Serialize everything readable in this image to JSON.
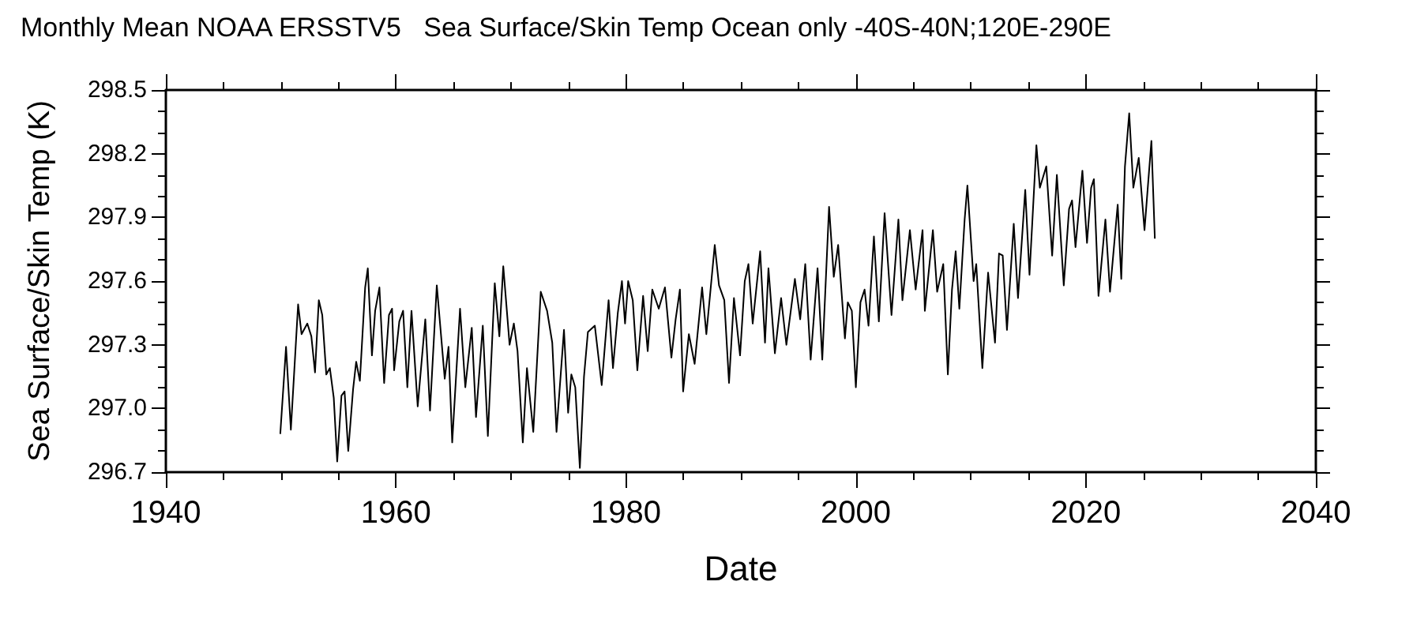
{
  "chart_data": {
    "type": "line",
    "title": "Monthly Mean NOAA ERSSTV5   Sea Surface/Skin Temp Ocean only -40S-40N;120E-290E",
    "xlabel": "Date",
    "ylabel": "Sea Surface/Skin Temp (K)",
    "xlim": [
      1940,
      2040
    ],
    "xticks": [
      1940,
      1960,
      1980,
      2000,
      2020,
      2040
    ],
    "ylim": [
      296.7,
      298.5
    ],
    "yticks": [
      296.7,
      {
        "value": 297,
        "label": "297.0"
      },
      297.3,
      297.6,
      297.9,
      298.2,
      298.5
    ],
    "grid": false,
    "marker": "none",
    "line_style": "solid",
    "series": [
      {
        "color": "#000000",
        "x": [
          1949.95,
          1950.45,
          1950.87,
          1951.5,
          1951.8,
          1952.3,
          1952.65,
          1952.97,
          1953.3,
          1953.6,
          1953.95,
          1954.26,
          1954.6,
          1954.9,
          1955.27,
          1955.54,
          1955.86,
          1956.28,
          1956.55,
          1956.87,
          1957.33,
          1957.56,
          1957.92,
          1958.2,
          1958.57,
          1958.98,
          1959.4,
          1959.67,
          1959.85,
          1960.3,
          1960.63,
          1961.0,
          1961.36,
          1961.9,
          1962.56,
          1962.97,
          1963.56,
          1964.25,
          1964.58,
          1964.9,
          1965.58,
          1966.04,
          1966.6,
          1966.97,
          1967.56,
          1968.0,
          1968.6,
          1969.0,
          1969.34,
          1969.89,
          1970.26,
          1970.58,
          1971.04,
          1971.4,
          1971.95,
          1972.6,
          1973.15,
          1973.6,
          1973.97,
          1974.62,
          1974.98,
          1975.26,
          1975.6,
          1976.0,
          1976.36,
          1976.7,
          1977.3,
          1977.9,
          1978.5,
          1978.88,
          1979.3,
          1979.66,
          1979.93,
          1980.2,
          1980.6,
          1981.0,
          1981.5,
          1981.9,
          1982.3,
          1982.86,
          1983.4,
          1983.96,
          1984.33,
          1984.7,
          1984.98,
          1985.48,
          1985.98,
          1986.63,
          1987.0,
          1987.73,
          1988.1,
          1988.56,
          1988.97,
          1989.4,
          1989.93,
          1990.34,
          1990.66,
          1991.03,
          1991.68,
          1992.1,
          1992.4,
          1992.96,
          1993.5,
          1993.96,
          1994.7,
          1995.16,
          1995.6,
          1996.07,
          1996.67,
          1997.08,
          1997.67,
          1998.08,
          1998.46,
          1999.05,
          1999.3,
          1999.65,
          2000.0,
          2000.4,
          2000.76,
          2001.1,
          2001.57,
          2002.0,
          2002.5,
          2003.1,
          2003.7,
          2004.05,
          2004.7,
          2005.2,
          2005.8,
          2006.0,
          2006.7,
          2007.07,
          2007.6,
          2008.0,
          2008.36,
          2008.68,
          2009.0,
          2009.46,
          2009.7,
          2010.24,
          2010.47,
          2011.0,
          2011.5,
          2012.1,
          2012.45,
          2012.77,
          2013.14,
          2013.73,
          2014.1,
          2014.73,
          2015.1,
          2015.7,
          2016.0,
          2016.56,
          2017.07,
          2017.48,
          2018.08,
          2018.54,
          2018.8,
          2019.1,
          2019.7,
          2020.1,
          2020.46,
          2020.7,
          2021.1,
          2021.7,
          2022.1,
          2022.77,
          2023.08,
          2023.4,
          2023.77,
          2024.13,
          2024.6,
          2025.1,
          2025.7,
          2026.0
        ],
        "values": [
          296.88,
          297.29,
          296.9,
          297.49,
          297.35,
          297.4,
          297.34,
          297.17,
          297.51,
          297.44,
          297.16,
          297.19,
          297.05,
          296.75,
          297.06,
          297.08,
          296.8,
          297.09,
          297.22,
          297.13,
          297.57,
          297.66,
          297.25,
          297.46,
          297.57,
          297.12,
          297.44,
          297.47,
          297.18,
          297.41,
          297.46,
          297.1,
          297.46,
          297.01,
          297.42,
          296.99,
          297.58,
          297.14,
          297.29,
          296.84,
          297.47,
          297.1,
          297.38,
          296.96,
          297.39,
          296.87,
          297.59,
          297.34,
          297.67,
          297.3,
          297.4,
          297.27,
          296.84,
          297.19,
          296.89,
          297.55,
          297.46,
          297.31,
          296.89,
          297.37,
          296.98,
          297.16,
          297.1,
          296.72,
          297.15,
          297.36,
          297.39,
          297.11,
          297.51,
          297.19,
          297.45,
          297.6,
          297.4,
          297.6,
          297.51,
          297.18,
          297.53,
          297.27,
          297.56,
          297.47,
          297.57,
          297.24,
          297.42,
          297.56,
          297.08,
          297.35,
          297.21,
          297.57,
          297.35,
          297.77,
          297.58,
          297.51,
          297.12,
          297.52,
          297.25,
          297.6,
          297.68,
          297.4,
          297.74,
          297.31,
          297.66,
          297.26,
          297.52,
          297.3,
          297.61,
          297.42,
          297.68,
          297.23,
          297.66,
          297.23,
          297.95,
          297.62,
          297.77,
          297.33,
          297.5,
          297.46,
          297.1,
          297.5,
          297.56,
          297.39,
          297.81,
          297.41,
          297.92,
          297.44,
          297.89,
          297.51,
          297.84,
          297.56,
          297.84,
          297.46,
          297.84,
          297.55,
          297.68,
          297.16,
          297.56,
          297.74,
          297.47,
          297.89,
          298.05,
          297.6,
          297.68,
          297.19,
          297.64,
          297.31,
          297.73,
          297.72,
          297.37,
          297.87,
          297.52,
          298.03,
          297.63,
          298.24,
          298.04,
          298.14,
          297.72,
          298.1,
          297.58,
          297.94,
          297.98,
          297.76,
          298.12,
          297.78,
          298.04,
          298.08,
          297.53,
          297.89,
          297.55,
          297.96,
          297.61,
          298.14,
          298.39,
          298.04,
          298.18,
          297.84,
          298.26,
          297.8
        ]
      }
    ]
  }
}
